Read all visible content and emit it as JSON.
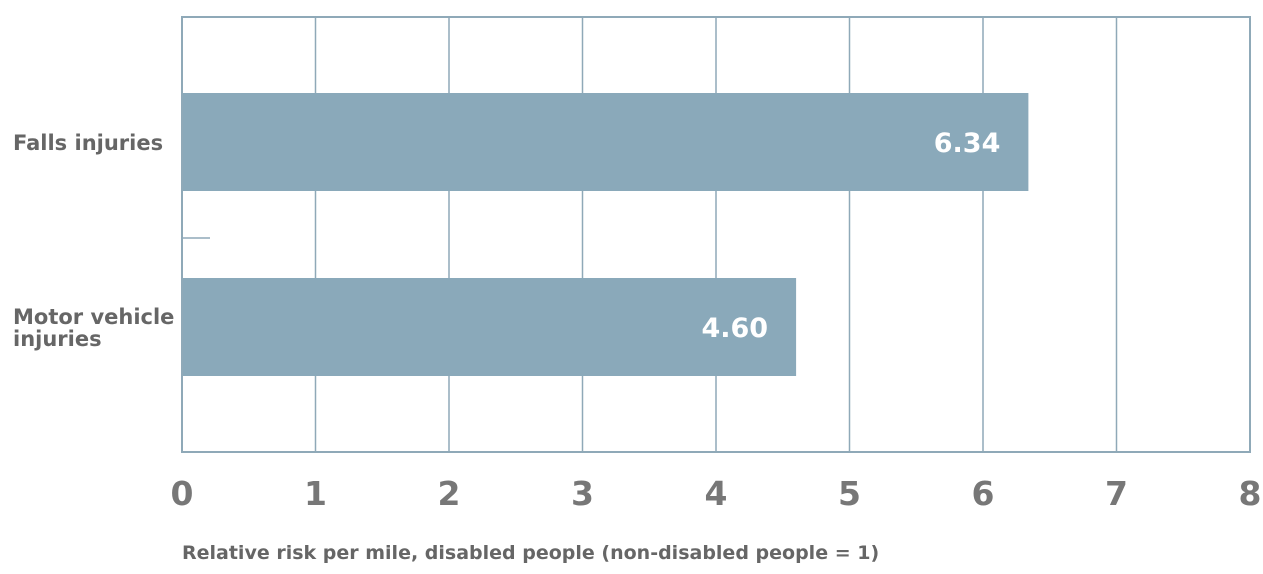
{
  "chart_data": {
    "type": "bar",
    "orientation": "horizontal",
    "categories": [
      [
        "Falls injuries"
      ],
      [
        "Motor vehicle",
        "injuries"
      ]
    ],
    "values": [
      6.34,
      4.6
    ],
    "value_labels": [
      "6.34",
      "4.60"
    ],
    "xlabel": "Relative risk per mile, disabled people (non-disabled people = 1)",
    "xlim": [
      0,
      8
    ],
    "xticks": [
      "0",
      "1",
      "2",
      "3",
      "4",
      "5",
      "6",
      "7",
      "8"
    ],
    "grid": true,
    "colors": {
      "bar": "#8aa9ba",
      "grid": "#8fa9b8",
      "text": "#666666",
      "value_text": "#ffffff"
    }
  }
}
